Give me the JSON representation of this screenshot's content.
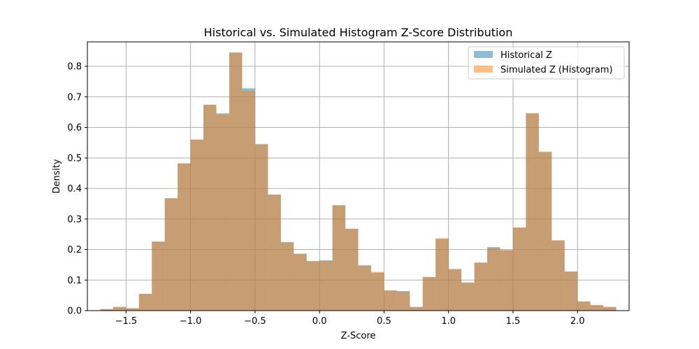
{
  "chart_data": {
    "type": "histogram",
    "title": "Historical vs. Simulated Histogram Z-Score Distribution",
    "xlabel": "Z-Score",
    "ylabel": "Density",
    "xlim": [
      -1.8,
      2.4
    ],
    "ylim": [
      0,
      0.88
    ],
    "xticks": [
      -1.5,
      -1.0,
      -0.5,
      0.0,
      0.5,
      1.0,
      1.5,
      2.0
    ],
    "xtick_labels": [
      "−1.5",
      "−1.0",
      "−0.5",
      "0.0",
      "0.5",
      "1.0",
      "1.5",
      "2.0"
    ],
    "yticks": [
      0.0,
      0.1,
      0.2,
      0.3,
      0.4,
      0.5,
      0.6,
      0.7,
      0.8
    ],
    "ytick_labels": [
      "0.0",
      "0.1",
      "0.2",
      "0.3",
      "0.4",
      "0.5",
      "0.6",
      "0.7",
      "0.8"
    ],
    "grid": true,
    "legend_position": "top-right",
    "bin_edges": [
      -1.7,
      -1.6,
      -1.5,
      -1.4,
      -1.3,
      -1.2,
      -1.1,
      -1.0,
      -0.9,
      -0.8,
      -0.7,
      -0.6,
      -0.5,
      -0.4,
      -0.3,
      -0.2,
      -0.1,
      0.0,
      0.1,
      0.2,
      0.3,
      0.4,
      0.5,
      0.6,
      0.7,
      0.8,
      0.9,
      1.0,
      1.1,
      1.2,
      1.3,
      1.4,
      1.5,
      1.6,
      1.7,
      1.8,
      1.9,
      2.0,
      2.1,
      2.2
    ],
    "series": [
      {
        "name": "Historical Z",
        "color": "#1f77b4",
        "alpha": 0.5,
        "values": [
          0.005,
          0.012,
          0.008,
          0.055,
          0.226,
          0.368,
          0.482,
          0.56,
          0.674,
          0.646,
          0.845,
          0.728,
          0.545,
          0.38,
          0.224,
          0.186,
          0.162,
          0.165,
          0.345,
          0.268,
          0.148,
          0.124,
          0.066,
          0.064,
          0.012,
          0.11,
          0.235,
          0.136,
          0.092,
          0.157,
          0.208,
          0.198,
          0.272,
          0.646,
          0.52,
          0.23,
          0.128,
          0.03,
          0.018,
          0.012
        ]
      },
      {
        "name": "Simulated Z (Histogram)",
        "color": "#ff7f0e",
        "alpha": 0.5,
        "values": [
          0.005,
          0.012,
          0.008,
          0.055,
          0.226,
          0.368,
          0.482,
          0.56,
          0.674,
          0.643,
          0.845,
          0.72,
          0.545,
          0.38,
          0.224,
          0.186,
          0.162,
          0.162,
          0.345,
          0.268,
          0.148,
          0.127,
          0.066,
          0.062,
          0.012,
          0.11,
          0.237,
          0.136,
          0.092,
          0.157,
          0.205,
          0.198,
          0.272,
          0.646,
          0.52,
          0.23,
          0.128,
          0.03,
          0.018,
          0.012
        ]
      }
    ]
  }
}
